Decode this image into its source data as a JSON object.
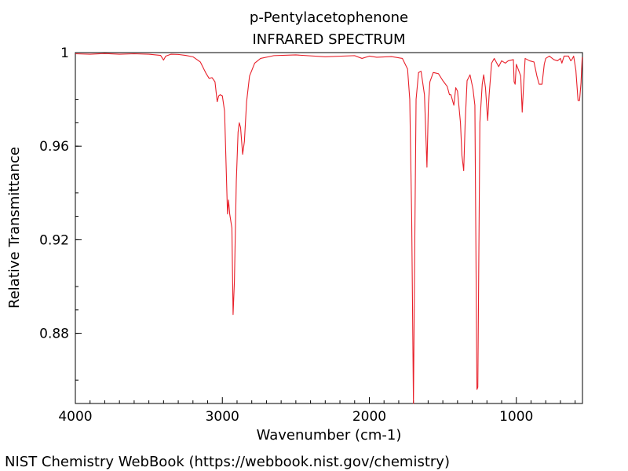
{
  "chart_data": {
    "type": "line",
    "title": "p-Pentylacetophenone",
    "subtitle": "INFRARED SPECTRUM",
    "xlabel": "Wavenumber (cm-1)",
    "ylabel": "Relative Transmittance",
    "xlim": [
      4000,
      550
    ],
    "ylim": [
      0.85,
      1.0
    ],
    "x_reversed": true,
    "x_ticks": [
      4000,
      3000,
      2000,
      1000
    ],
    "x_tick_labels": [
      "4000",
      "3000",
      "2000",
      "1000"
    ],
    "y_ticks": [
      1.0,
      0.96,
      0.92,
      0.88
    ],
    "y_tick_labels": [
      "1",
      "0.96",
      "0.92",
      "0.88"
    ],
    "grid": false,
    "legend": "none",
    "series": [
      {
        "color": "#e8202a",
        "points": [
          [
            4000,
            0.9995
          ],
          [
            3900,
            0.9993
          ],
          [
            3800,
            0.9996
          ],
          [
            3700,
            0.9993
          ],
          [
            3600,
            0.9995
          ],
          [
            3500,
            0.9993
          ],
          [
            3420,
            0.9988
          ],
          [
            3400,
            0.9968
          ],
          [
            3385,
            0.9985
          ],
          [
            3350,
            0.9993
          ],
          [
            3300,
            0.9992
          ],
          [
            3250,
            0.9988
          ],
          [
            3200,
            0.9982
          ],
          [
            3150,
            0.996
          ],
          [
            3110,
            0.991
          ],
          [
            3090,
            0.989
          ],
          [
            3070,
            0.9893
          ],
          [
            3050,
            0.9875
          ],
          [
            3035,
            0.979
          ],
          [
            3025,
            0.9815
          ],
          [
            3015,
            0.982
          ],
          [
            3000,
            0.9815
          ],
          [
            2985,
            0.975
          ],
          [
            2965,
            0.931
          ],
          [
            2958,
            0.937
          ],
          [
            2950,
            0.931
          ],
          [
            2935,
            0.925
          ],
          [
            2927,
            0.888
          ],
          [
            2918,
            0.902
          ],
          [
            2905,
            0.945
          ],
          [
            2893,
            0.966
          ],
          [
            2885,
            0.97
          ],
          [
            2876,
            0.968
          ],
          [
            2862,
            0.9565
          ],
          [
            2850,
            0.962
          ],
          [
            2835,
            0.979
          ],
          [
            2815,
            0.99
          ],
          [
            2780,
            0.9955
          ],
          [
            2740,
            0.9975
          ],
          [
            2650,
            0.9987
          ],
          [
            2500,
            0.999
          ],
          [
            2300,
            0.9982
          ],
          [
            2100,
            0.9987
          ],
          [
            2050,
            0.9975
          ],
          [
            2000,
            0.9985
          ],
          [
            1950,
            0.998
          ],
          [
            1850,
            0.9983
          ],
          [
            1775,
            0.9975
          ],
          [
            1740,
            0.993
          ],
          [
            1725,
            0.98
          ],
          [
            1712,
            0.93
          ],
          [
            1700,
            0.85
          ],
          [
            1690,
            0.925
          ],
          [
            1682,
            0.98
          ],
          [
            1665,
            0.9915
          ],
          [
            1648,
            0.992
          ],
          [
            1625,
            0.982
          ],
          [
            1608,
            0.951
          ],
          [
            1598,
            0.978
          ],
          [
            1588,
            0.9875
          ],
          [
            1565,
            0.9915
          ],
          [
            1530,
            0.991
          ],
          [
            1500,
            0.988
          ],
          [
            1470,
            0.9855
          ],
          [
            1455,
            0.982
          ],
          [
            1445,
            0.982
          ],
          [
            1425,
            0.9775
          ],
          [
            1412,
            0.985
          ],
          [
            1400,
            0.9835
          ],
          [
            1380,
            0.97
          ],
          [
            1370,
            0.956
          ],
          [
            1358,
            0.9495
          ],
          [
            1348,
            0.97
          ],
          [
            1335,
            0.988
          ],
          [
            1315,
            0.9905
          ],
          [
            1295,
            0.9845
          ],
          [
            1282,
            0.9775
          ],
          [
            1268,
            0.856
          ],
          [
            1262,
            0.857
          ],
          [
            1248,
            0.97
          ],
          [
            1232,
            0.9865
          ],
          [
            1222,
            0.9905
          ],
          [
            1210,
            0.985
          ],
          [
            1195,
            0.971
          ],
          [
            1185,
            0.982
          ],
          [
            1168,
            0.9955
          ],
          [
            1150,
            0.9975
          ],
          [
            1120,
            0.994
          ],
          [
            1100,
            0.9965
          ],
          [
            1075,
            0.9955
          ],
          [
            1055,
            0.9965
          ],
          [
            1020,
            0.997
          ],
          [
            1015,
            0.9875
          ],
          [
            1008,
            0.9865
          ],
          [
            1000,
            0.995
          ],
          [
            985,
            0.9925
          ],
          [
            970,
            0.99
          ],
          [
            960,
            0.9745
          ],
          [
            950,
            0.9865
          ],
          [
            940,
            0.9975
          ],
          [
            910,
            0.9965
          ],
          [
            880,
            0.996
          ],
          [
            860,
            0.99
          ],
          [
            845,
            0.9865
          ],
          [
            825,
            0.9865
          ],
          [
            810,
            0.995
          ],
          [
            800,
            0.9975
          ],
          [
            775,
            0.9985
          ],
          [
            745,
            0.997
          ],
          [
            720,
            0.9965
          ],
          [
            700,
            0.9975
          ],
          [
            690,
            0.9955
          ],
          [
            675,
            0.9985
          ],
          [
            645,
            0.9985
          ],
          [
            630,
            0.9965
          ],
          [
            622,
            0.997
          ],
          [
            610,
            0.9985
          ],
          [
            595,
            0.9925
          ],
          [
            580,
            0.9795
          ],
          [
            570,
            0.9795
          ],
          [
            560,
            0.987
          ],
          [
            552,
            0.998
          ]
        ]
      }
    ]
  },
  "credit": "NIST Chemistry WebBook (https://webbook.nist.gov/chemistry)"
}
